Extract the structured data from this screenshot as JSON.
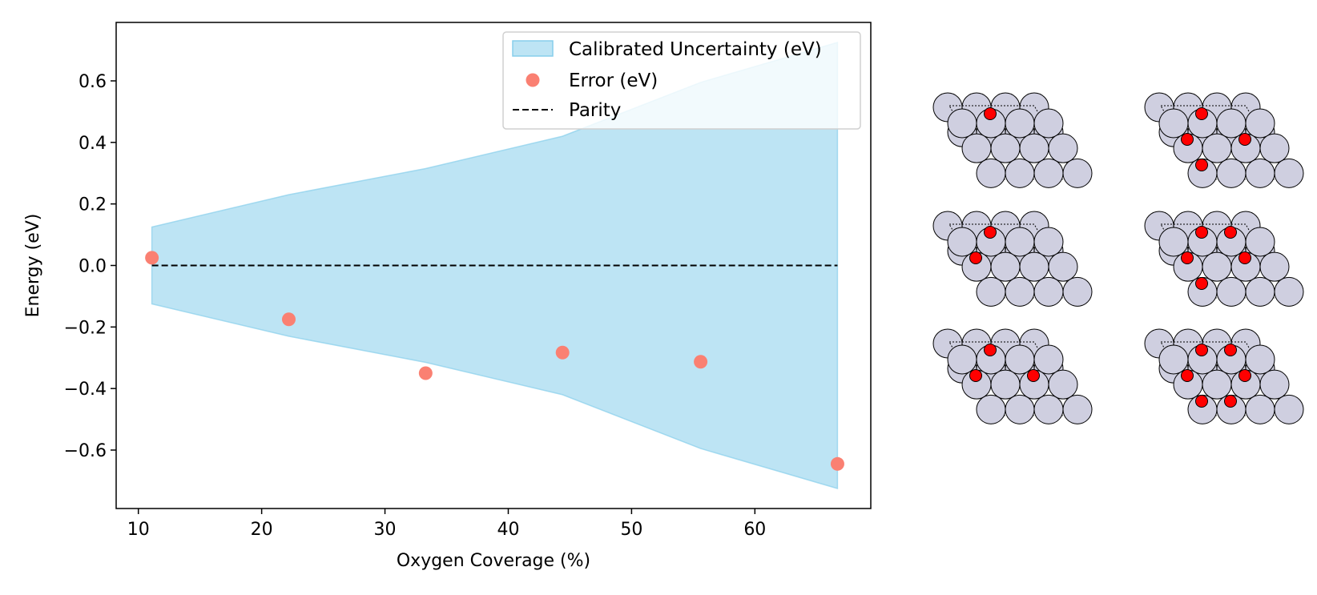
{
  "chart_data": {
    "type": "scatter",
    "title": "",
    "xlabel": "Oxygen Coverage (%)",
    "ylabel": "Energy (eV)",
    "xlim": [
      8.2,
      69.4
    ],
    "ylim": [
      -0.79,
      0.79
    ],
    "grid": false,
    "legend_position": "top-right",
    "xticks": [
      10,
      20,
      30,
      40,
      50,
      60
    ],
    "xtick_labels": [
      "10",
      "20",
      "30",
      "40",
      "50",
      "60"
    ],
    "yticks": [
      -0.6,
      -0.4,
      -0.2,
      0.0,
      0.2,
      0.4,
      0.6
    ],
    "ytick_labels": [
      "−0.6",
      "−0.4",
      "−0.2",
      "0.0",
      "0.2",
      "0.4",
      "0.6"
    ],
    "series": [
      {
        "name": "Calibrated Uncertainty (eV)",
        "kind": "band",
        "color": "#87ceeb",
        "x": [
          11.1,
          22.2,
          33.3,
          44.4,
          55.6,
          66.7
        ],
        "upper": [
          0.125,
          0.23,
          0.315,
          0.42,
          0.595,
          0.725
        ],
        "lower": [
          -0.125,
          -0.23,
          -0.315,
          -0.42,
          -0.595,
          -0.725
        ]
      },
      {
        "name": "Error (eV)",
        "kind": "scatter",
        "color": "#fa8072",
        "x": [
          11.1,
          22.2,
          33.3,
          44.4,
          55.6,
          66.7
        ],
        "y": [
          0.025,
          -0.175,
          -0.35,
          -0.283,
          -0.313,
          -0.645
        ]
      },
      {
        "name": "Parity",
        "kind": "line",
        "color": "#000000",
        "x": [
          11.1,
          66.7
        ],
        "y": [
          0,
          0
        ]
      }
    ],
    "legend": [
      {
        "label": "Calibrated Uncertainty (eV)",
        "marker": "patch"
      },
      {
        "label": "Error (eV)",
        "marker": "dot"
      },
      {
        "label": "Parity",
        "marker": "dashed-line"
      }
    ]
  },
  "structure_panels": [
    {
      "name": "structure-1-oxygen",
      "oxygen_count": 1
    },
    {
      "name": "structure-4-oxygen",
      "oxygen_count": 4
    },
    {
      "name": "structure-2-oxygen",
      "oxygen_count": 2
    },
    {
      "name": "structure-5-oxygen",
      "oxygen_count": 5
    },
    {
      "name": "structure-3-oxygen",
      "oxygen_count": 3
    },
    {
      "name": "structure-6-oxygen",
      "oxygen_count": 6
    }
  ],
  "colors": {
    "metal_atom": "#cfcfe0",
    "oxygen_atom": "#ff0000",
    "axes": "#000000"
  }
}
